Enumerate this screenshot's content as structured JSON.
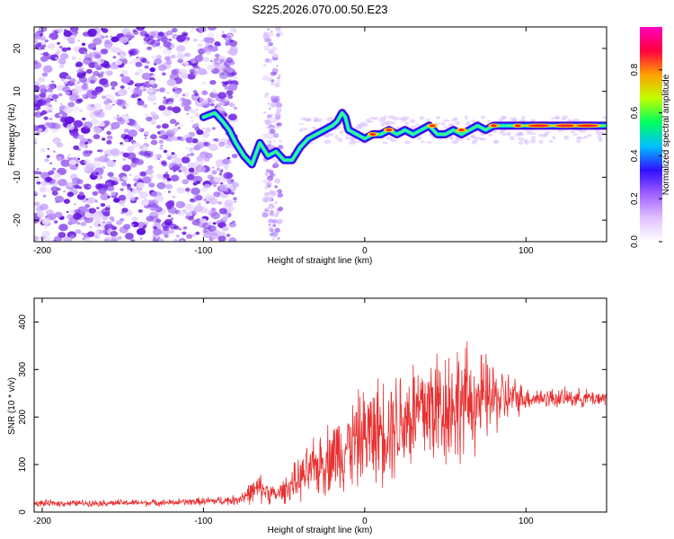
{
  "title": "S225.2026.070.00.50.E23",
  "colors": {
    "snr_line": "#e83030",
    "axis": "#000000",
    "spectro_low": "#9a6ae0",
    "spectro_dark": "#5a00d8"
  },
  "chart_data": [
    {
      "type": "heatmap",
      "name": "spectrogram",
      "xlabel": "Height of straight line (km)",
      "ylabel": "Frequency (Hz)",
      "xlim": [
        -205,
        150
      ],
      "ylim": [
        -25,
        25
      ],
      "xticks": [
        -200,
        -100,
        0,
        100
      ],
      "yticks": [
        -20,
        -10,
        0,
        10,
        20
      ],
      "ridge": [
        {
          "x": -100,
          "y": 4
        },
        {
          "x": -93,
          "y": 5
        },
        {
          "x": -88,
          "y": 3
        },
        {
          "x": -84,
          "y": 1
        },
        {
          "x": -80,
          "y": -2
        },
        {
          "x": -75,
          "y": -5
        },
        {
          "x": -70,
          "y": -7
        },
        {
          "x": -65,
          "y": -2
        },
        {
          "x": -60,
          "y": -5
        },
        {
          "x": -55,
          "y": -4
        },
        {
          "x": -50,
          "y": -6
        },
        {
          "x": -45,
          "y": -6
        },
        {
          "x": -40,
          "y": -3
        },
        {
          "x": -35,
          "y": -1
        },
        {
          "x": -30,
          "y": 0
        },
        {
          "x": -25,
          "y": 1
        },
        {
          "x": -20,
          "y": 2
        },
        {
          "x": -17,
          "y": 3
        },
        {
          "x": -14,
          "y": 5
        },
        {
          "x": -12,
          "y": 4
        },
        {
          "x": -10,
          "y": 1
        },
        {
          "x": -5,
          "y": 0
        },
        {
          "x": 0,
          "y": -1
        },
        {
          "x": 5,
          "y": 0
        },
        {
          "x": 10,
          "y": 0
        },
        {
          "x": 15,
          "y": 1
        },
        {
          "x": 20,
          "y": 0
        },
        {
          "x": 25,
          "y": 1
        },
        {
          "x": 30,
          "y": 0
        },
        {
          "x": 35,
          "y": 1
        },
        {
          "x": 40,
          "y": 2
        },
        {
          "x": 45,
          "y": 0
        },
        {
          "x": 50,
          "y": 0
        },
        {
          "x": 55,
          "y": 1
        },
        {
          "x": 60,
          "y": 0
        },
        {
          "x": 65,
          "y": 1
        },
        {
          "x": 70,
          "y": 2
        },
        {
          "x": 75,
          "y": 1
        },
        {
          "x": 80,
          "y": 2
        },
        {
          "x": 90,
          "y": 2
        },
        {
          "x": 100,
          "y": 2
        },
        {
          "x": 110,
          "y": 2
        },
        {
          "x": 120,
          "y": 2
        },
        {
          "x": 130,
          "y": 2
        },
        {
          "x": 140,
          "y": 2
        },
        {
          "x": 150,
          "y": 2
        }
      ],
      "colorbar": {
        "label": "Normalized spectral amplitude",
        "range": [
          0,
          1
        ],
        "ticks": [
          "0.0",
          "0.2",
          "0.4",
          "0.6",
          "0.8"
        ],
        "stops": [
          "#ffffff",
          "#e0c0ff",
          "#a060ff",
          "#3010ff",
          "#00c0ff",
          "#00ff60",
          "#c0ff00",
          "#ffa000",
          "#ff0040",
          "#ff00c0"
        ]
      }
    },
    {
      "type": "line",
      "name": "snr",
      "xlabel": "Height of straight line (km)",
      "ylabel": "SNR (10 * v/v)",
      "xlim": [
        -205,
        150
      ],
      "ylim": [
        0,
        450
      ],
      "xticks": [
        -200,
        -100,
        0,
        100
      ],
      "yticks": [
        0,
        100,
        200,
        300,
        400
      ],
      "envelope": [
        {
          "x": -205,
          "base": 18,
          "amp": 12
        },
        {
          "x": -120,
          "base": 20,
          "amp": 12
        },
        {
          "x": -80,
          "base": 25,
          "amp": 18
        },
        {
          "x": -65,
          "base": 50,
          "amp": 55
        },
        {
          "x": -55,
          "base": 35,
          "amp": 30
        },
        {
          "x": -40,
          "base": 70,
          "amp": 80
        },
        {
          "x": -20,
          "base": 120,
          "amp": 140
        },
        {
          "x": 0,
          "base": 160,
          "amp": 180
        },
        {
          "x": 20,
          "base": 190,
          "amp": 210
        },
        {
          "x": 40,
          "base": 220,
          "amp": 240
        },
        {
          "x": 60,
          "base": 230,
          "amp": 220
        },
        {
          "x": 80,
          "base": 240,
          "amp": 140
        },
        {
          "x": 100,
          "base": 240,
          "amp": 40
        },
        {
          "x": 150,
          "base": 240,
          "amp": 30
        }
      ]
    }
  ]
}
